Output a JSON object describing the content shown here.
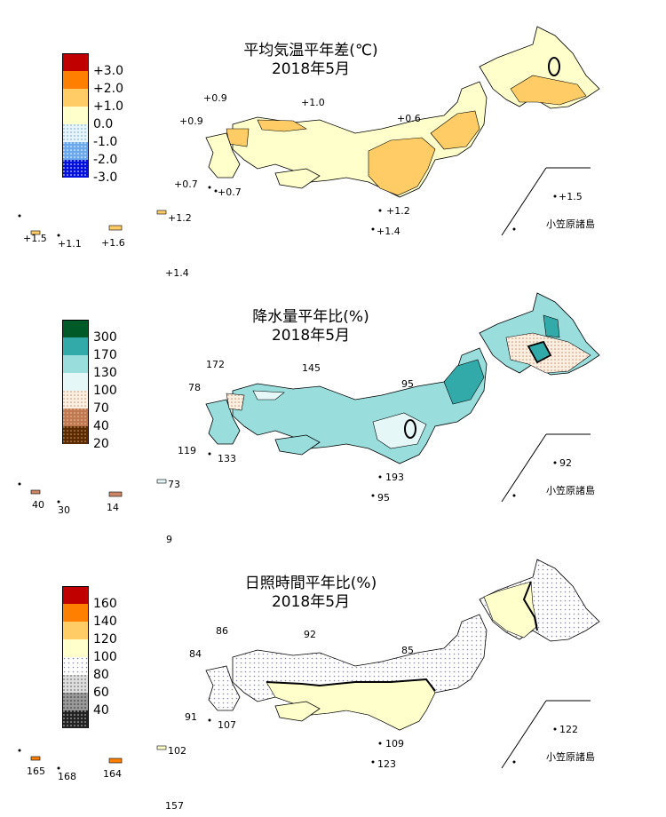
{
  "colors": {
    "temp": [
      "#c00000",
      "#ff8000",
      "#ffcc66",
      "#ffffcc",
      "#e8f4fc",
      "#a8d0f8",
      "#0010e0"
    ],
    "precip": [
      "#005a28",
      "#33aaaa",
      "#99dddd",
      "#e6f7f7",
      "#f8e8d8",
      "#cc8866",
      "#663300"
    ],
    "sun": [
      "#c00000",
      "#ff8000",
      "#ffcc66",
      "#ffffcc",
      "#eeeeee",
      "#999999",
      "#333333"
    ]
  },
  "panels": [
    {
      "title_line1": "平均気温平年差(℃)",
      "title_line2": "2018年5月",
      "legend_labels": [
        "+3.0",
        "+2.0",
        "+1.0",
        "0.0",
        "-1.0",
        "-2.0",
        "-3.0"
      ],
      "values": {
        "north_coast": "+0.9",
        "oki": "+1.0",
        "west_coast": "+0.9",
        "sado": "+0.6",
        "goto": "+0.7",
        "koshiki": "+0.7",
        "amami": "+1.2",
        "yonaguni": "+1.5",
        "miyako": "+1.1",
        "okinawa": "+1.6",
        "hachijo": "+1.2",
        "izu": "+1.4",
        "daito": "+1.4",
        "bonin": "+1.5"
      },
      "bonin_label": "小笠原諸島"
    },
    {
      "title_line1": "降水量平年比(%)",
      "title_line2": "2018年5月",
      "legend_labels": [
        "300",
        "170",
        "130",
        "100",
        "70",
        "40",
        "20"
      ],
      "values": {
        "north_coast": "172",
        "oki": "145",
        "west_coast": "78",
        "sado": "95",
        "goto": "119",
        "koshiki": "133",
        "amami": "73",
        "yonaguni": "40",
        "miyako": "30",
        "okinawa": "14",
        "hachijo": "193",
        "izu": "95",
        "daito": "9",
        "bonin": "92"
      },
      "bonin_label": "小笠原諸島"
    },
    {
      "title_line1": "日照時間平年比(%)",
      "title_line2": "2018年5月",
      "legend_labels": [
        "160",
        "140",
        "120",
        "100",
        "80",
        "60",
        "40"
      ],
      "values": {
        "north_coast": "86",
        "oki": "92",
        "west_coast": "84",
        "sado": "85",
        "goto": "91",
        "koshiki": "107",
        "amami": "102",
        "yonaguni": "165",
        "miyako": "168",
        "okinawa": "164",
        "hachijo": "109",
        "izu": "123",
        "daito": "157",
        "bonin": "122"
      },
      "bonin_label": "小笠原諸島"
    }
  ]
}
